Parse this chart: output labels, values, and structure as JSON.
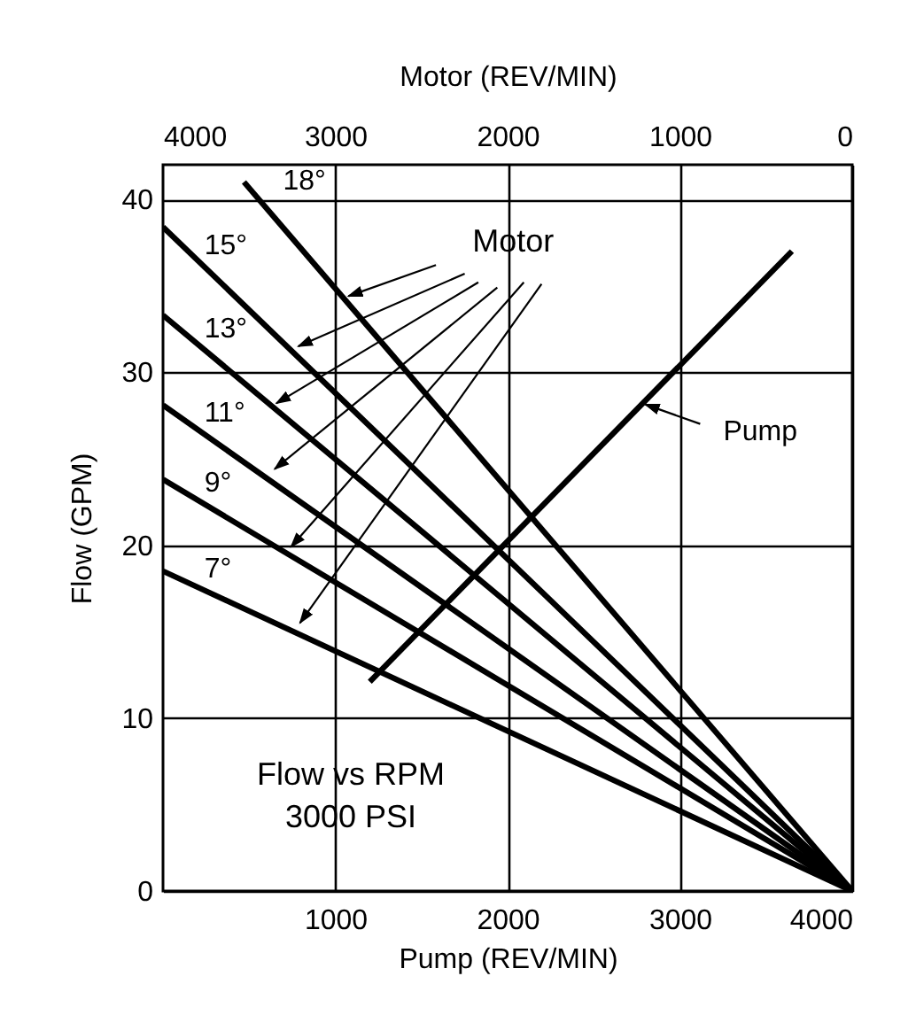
{
  "chart_data": {
    "type": "line",
    "xlabel": "Pump (REV/MIN)",
    "x2label": "Motor (REV/MIN)",
    "ylabel": "Flow (GPM)",
    "xlim": [
      0,
      4000
    ],
    "xticks": [
      1000,
      2000,
      3000,
      4000
    ],
    "x2lim": [
      4000,
      0
    ],
    "x2ticks": [
      4000,
      3000,
      2000,
      1000,
      0
    ],
    "ylim": [
      0,
      42
    ],
    "yticks": [
      0,
      10,
      20,
      30,
      40
    ],
    "grid": true,
    "series": [
      {
        "name": "18°",
        "color": "#000000",
        "x": [
          470,
          4000
        ],
        "values": [
          41.0,
          0
        ]
      },
      {
        "name": "15°",
        "color": "#000000",
        "x": [
          0,
          4000
        ],
        "values": [
          38.4,
          0
        ]
      },
      {
        "name": "13°",
        "color": "#000000",
        "x": [
          0,
          4000
        ],
        "values": [
          33.3,
          0
        ]
      },
      {
        "name": "11°",
        "color": "#000000",
        "x": [
          0,
          4000
        ],
        "values": [
          28.1,
          0
        ]
      },
      {
        "name": "9°",
        "color": "#000000",
        "x": [
          0,
          4000
        ],
        "values": [
          23.8,
          0
        ]
      },
      {
        "name": "7°",
        "color": "#000000",
        "x": [
          0,
          4000
        ],
        "values": [
          18.5,
          0
        ]
      },
      {
        "name": "Pump",
        "color": "#000000",
        "x": [
          1200,
          3650
        ],
        "values": [
          12.1,
          37.0
        ]
      }
    ],
    "annotations": [
      {
        "text": "Motor",
        "x": 1076,
        "y": 34.4
      },
      "Flow vs RPM",
      "3000 PSI"
    ]
  }
}
